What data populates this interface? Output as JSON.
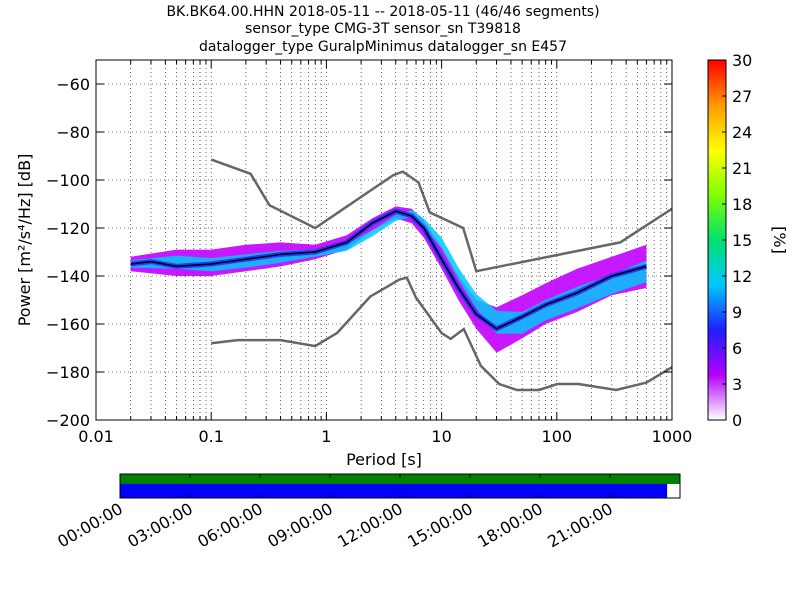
{
  "title": {
    "line1": "BK.BK64.00.HHN   2018-05-11 -- 2018-05-11  (46/46 segments)",
    "line2": "sensor_type CMG-3T sensor_sn T39818",
    "line3": "datalogger_type GuralpMinimus datalogger_sn E457"
  },
  "chart_data": {
    "type": "heatmap",
    "xlabel": "Period [s]",
    "ylabel": "Power [m²/s⁴/Hz] [dB]",
    "xscale": "log",
    "xlim": [
      0.01,
      1000
    ],
    "ylim": [
      -200,
      -50
    ],
    "x_ticks": [
      0.01,
      0.1,
      1,
      10,
      100,
      1000
    ],
    "x_tick_labels": [
      "0.01",
      "0.1",
      "1",
      "10",
      "100",
      "1000"
    ],
    "y_ticks": [
      -200,
      -180,
      -160,
      -140,
      -120,
      -100,
      -80,
      -60
    ],
    "y_tick_labels": [
      "−200",
      "−180",
      "−160",
      "−140",
      "−120",
      "−100",
      "−80",
      "−60"
    ],
    "grid": "dotted",
    "colorbar": {
      "label": "[%]",
      "min": 0,
      "max": 30,
      "ticks": [
        0,
        3,
        6,
        9,
        12,
        15,
        18,
        21,
        24,
        27,
        30
      ],
      "colors": [
        "#ffffff",
        "#b400ff",
        "#1e1eff",
        "#00c8ff",
        "#00e070",
        "#7fff00",
        "#ffff00",
        "#ff9900",
        "#ff0000"
      ]
    },
    "model_high": [
      [
        0.1,
        -91.5
      ],
      [
        0.22,
        -97.4
      ],
      [
        0.32,
        -110.5
      ],
      [
        0.8,
        -120
      ],
      [
        3.8,
        -98
      ],
      [
        4.6,
        -96.5
      ],
      [
        6.3,
        -101
      ],
      [
        7.9,
        -113.5
      ],
      [
        15.4,
        -120
      ],
      [
        20,
        -138
      ],
      [
        354.8,
        -126
      ],
      [
        1000,
        -112
      ]
    ],
    "model_low": [
      [
        0.1,
        -168
      ],
      [
        0.17,
        -166.7
      ],
      [
        0.4,
        -166.7
      ],
      [
        0.8,
        -169.2
      ],
      [
        1.24,
        -163.7
      ],
      [
        2.4,
        -148.6
      ],
      [
        4.3,
        -141.5
      ],
      [
        5,
        -140.7
      ],
      [
        6,
        -149
      ],
      [
        10,
        -163.8
      ],
      [
        12,
        -166.2
      ],
      [
        15.6,
        -162.1
      ],
      [
        21.9,
        -177.4
      ],
      [
        31.6,
        -185
      ],
      [
        45,
        -187.5
      ],
      [
        70,
        -187.5
      ],
      [
        101,
        -185
      ],
      [
        154,
        -185
      ],
      [
        328,
        -187.5
      ],
      [
        600,
        -184.4
      ],
      [
        1000,
        -178
      ]
    ],
    "mean_curve": [
      [
        0.02,
        -135
      ],
      [
        0.03,
        -134
      ],
      [
        0.05,
        -136
      ],
      [
        0.1,
        -135
      ],
      [
        0.2,
        -133
      ],
      [
        0.4,
        -131
      ],
      [
        0.8,
        -130
      ],
      [
        1.5,
        -126
      ],
      [
        2.5,
        -118
      ],
      [
        4,
        -113
      ],
      [
        5.5,
        -115
      ],
      [
        7,
        -120
      ],
      [
        10,
        -133
      ],
      [
        14,
        -145
      ],
      [
        20,
        -156
      ],
      [
        30,
        -162
      ],
      [
        50,
        -157
      ],
      [
        80,
        -152
      ],
      [
        150,
        -147
      ],
      [
        300,
        -140
      ],
      [
        600,
        -136
      ]
    ],
    "density_band": {
      "upper": [
        [
          0.02,
          -132
        ],
        [
          0.05,
          -129
        ],
        [
          0.1,
          -129
        ],
        [
          0.2,
          -127
        ],
        [
          0.4,
          -126
        ],
        [
          0.8,
          -127
        ],
        [
          1.5,
          -123
        ],
        [
          2.5,
          -116
        ],
        [
          4,
          -111
        ],
        [
          5.5,
          -112
        ],
        [
          7,
          -117
        ],
        [
          10,
          -128
        ],
        [
          14,
          -140
        ],
        [
          20,
          -150
        ],
        [
          30,
          -153
        ],
        [
          50,
          -148
        ],
        [
          80,
          -143
        ],
        [
          150,
          -137
        ],
        [
          300,
          -132
        ],
        [
          600,
          -127
        ]
      ],
      "lower": [
        [
          0.02,
          -138
        ],
        [
          0.05,
          -140
        ],
        [
          0.1,
          -140
        ],
        [
          0.2,
          -138
        ],
        [
          0.4,
          -136
        ],
        [
          0.8,
          -133
        ],
        [
          1.5,
          -129
        ],
        [
          2.5,
          -121
        ],
        [
          4,
          -116
        ],
        [
          5.5,
          -118
        ],
        [
          7,
          -124
        ],
        [
          10,
          -137
        ],
        [
          14,
          -150
        ],
        [
          20,
          -162
        ],
        [
          30,
          -172
        ],
        [
          50,
          -166
        ],
        [
          80,
          -160
        ],
        [
          150,
          -155
        ],
        [
          300,
          -148
        ],
        [
          600,
          -145
        ]
      ]
    },
    "timeline": {
      "tick_labels": [
        "00:00:00",
        "03:00:00",
        "06:00:00",
        "09:00:00",
        "12:00:00",
        "15:00:00",
        "18:00:00",
        "21:00:00"
      ],
      "data_coverage_end_fraction": 1.0,
      "psd_coverage_end_fraction": 0.977,
      "data_color": "#008000",
      "psd_color": "#0000ff"
    }
  }
}
